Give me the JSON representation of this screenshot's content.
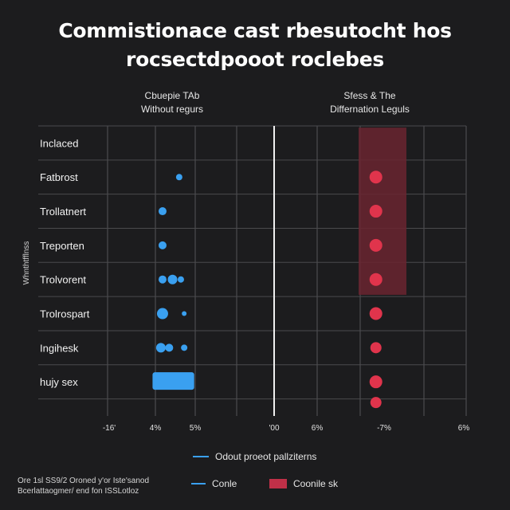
{
  "chart_data": {
    "type": "scatter",
    "title_line1": "Commistionace cast rbesutocht hos",
    "title_line2": "rocsectdpooot roclebes",
    "left_panel_title": [
      "Cbuepie TAb",
      "Without regurs"
    ],
    "right_panel_title": [
      "Sfess & The",
      "Differnation Leguls"
    ],
    "ylabel": "Whnthtfflnss",
    "categories": [
      "Inclaced",
      "Fatbrost",
      "Trollatnert",
      "Treporten",
      "Trolvorent",
      "Trolrospart",
      "Ingihesk",
      "hujy sex"
    ],
    "x_tick_labels": [
      "-16'",
      "4%",
      "5%",
      "'00",
      "6%",
      "-7%",
      "6%"
    ],
    "left_series": {
      "color": "#3aa0f0",
      "points": [
        {
          "row": 1,
          "x": 0.43,
          "r": 4
        },
        {
          "row": 2,
          "x": 0.33,
          "r": 5
        },
        {
          "row": 3,
          "x": 0.33,
          "r": 5
        },
        {
          "row": 4,
          "x": 0.39,
          "r": 6
        },
        {
          "row": 4,
          "x": 0.33,
          "r": 5
        },
        {
          "row": 4,
          "x": 0.44,
          "r": 4
        },
        {
          "row": 5,
          "x": 0.33,
          "r": 5
        },
        {
          "row": 5,
          "x": 0.33,
          "r": 7
        },
        {
          "row": 5,
          "x": 0.46,
          "r": 3
        },
        {
          "row": 6,
          "x": 0.37,
          "r": 5
        },
        {
          "row": 6,
          "x": 0.32,
          "r": 6
        },
        {
          "row": 6,
          "x": 0.46,
          "r": 4
        }
      ],
      "bar": {
        "row": 7,
        "x0": 0.27,
        "x1": 0.52
      }
    },
    "right_series": {
      "color": "#e0344c",
      "band_color": "#6a2430",
      "band_rows": [
        0,
        4
      ],
      "points": [
        {
          "row": 1,
          "x": 0.53,
          "r": 8
        },
        {
          "row": 2,
          "x": 0.53,
          "r": 8
        },
        {
          "row": 3,
          "x": 0.53,
          "r": 8
        },
        {
          "row": 4,
          "x": 0.53,
          "r": 8
        },
        {
          "row": 5,
          "x": 0.53,
          "r": 8
        },
        {
          "row": 6,
          "x": 0.53,
          "r": 7
        },
        {
          "row": 7,
          "x": 0.53,
          "r": 8
        },
        {
          "row": 7,
          "x": 0.53,
          "r": 7
        }
      ]
    },
    "legend": {
      "line_label": "Odout proeot pallziterns",
      "small_label": "Conle",
      "patch_label": "Coonile sk",
      "line_color": "#3aa0f0",
      "patch_color": "#c03048"
    },
    "footnote": [
      "Ore 1sl SS9/2 Oroned y'or Iste'sanod",
      "Bcerlattaogmer/ end fon ISSLotloz"
    ]
  }
}
